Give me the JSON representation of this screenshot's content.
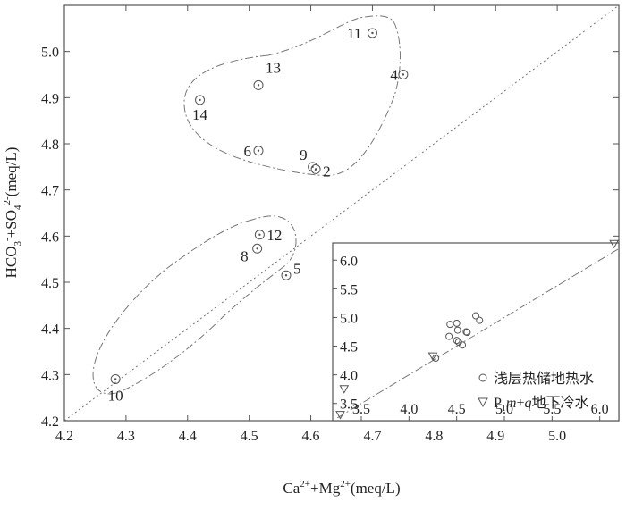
{
  "chart_data": [
    {
      "type": "scatter",
      "title": "",
      "xlabel": "Ca²⁺+Mg²⁺(meq/L)",
      "ylabel": "HCO₃⁻+SO₄²⁻(meq/L)",
      "xlim": [
        4.2,
        5.1
      ],
      "ylim": [
        4.2,
        5.1
      ],
      "xticks": [
        "4.2",
        "4.3",
        "4.4",
        "4.5",
        "4.6",
        "4.7",
        "4.8",
        "4.9",
        "5.0"
      ],
      "yticks": [
        "4.2",
        "4.3",
        "4.4",
        "4.5",
        "4.6",
        "4.7",
        "4.8",
        "4.9",
        "5.0"
      ],
      "reference_line": "1:1",
      "grid": false,
      "points": [
        {
          "label": "11",
          "x": 4.7,
          "y": 5.04
        },
        {
          "label": "4",
          "x": 4.75,
          "y": 4.95
        },
        {
          "label": "13",
          "x": 4.515,
          "y": 4.927
        },
        {
          "label": "14",
          "x": 4.42,
          "y": 4.895
        },
        {
          "label": "6",
          "x": 4.515,
          "y": 4.785
        },
        {
          "label": "9",
          "x": 4.603,
          "y": 4.75
        },
        {
          "label": "2",
          "x": 4.608,
          "y": 4.745
        },
        {
          "label": "12",
          "x": 4.517,
          "y": 4.603
        },
        {
          "label": "8",
          "x": 4.513,
          "y": 4.573
        },
        {
          "label": "5",
          "x": 4.56,
          "y": 4.515
        },
        {
          "label": "10",
          "x": 4.283,
          "y": 4.29
        }
      ]
    },
    {
      "type": "scatter",
      "title": "",
      "xlim": [
        3.2,
        6.2
      ],
      "ylim": [
        3.2,
        6.3
      ],
      "xticks": [
        "3.5",
        "4.0",
        "4.5",
        "5.0",
        "5.5",
        "6.0"
      ],
      "yticks": [
        "3.5",
        "4.0",
        "4.5",
        "5.0",
        "5.5",
        "6.0"
      ],
      "reference_line": "1:1",
      "series": [
        {
          "name": "浅层热储地热水",
          "marker": "circle",
          "points": [
            [
              4.28,
              4.29
            ],
            [
              4.42,
              4.67
            ],
            [
              4.43,
              4.88
            ],
            [
              4.5,
              4.9
            ],
            [
              4.51,
              4.78
            ],
            [
              4.5,
              4.6
            ],
            [
              4.52,
              4.57
            ],
            [
              4.56,
              4.52
            ],
            [
              4.6,
              4.75
            ],
            [
              4.61,
              4.74
            ],
            [
              4.7,
              5.03
            ],
            [
              4.74,
              4.95
            ]
          ]
        },
        {
          "name": "P₁m+q地下冷水",
          "marker": "triangle-down",
          "points": [
            [
              4.25,
              4.32
            ],
            [
              3.32,
              3.75
            ],
            [
              3.28,
              3.3
            ],
            [
              6.15,
              6.28
            ]
          ]
        }
      ],
      "legend": {
        "position": "bottom-right",
        "entries": [
          {
            "prefix": "",
            "text": "浅层热储地热水"
          },
          {
            "prefix": "P",
            "sub": "1",
            "italic": "m",
            "plus": "+",
            "italic2": "q",
            "text": "地下冷水"
          }
        ]
      }
    }
  ]
}
